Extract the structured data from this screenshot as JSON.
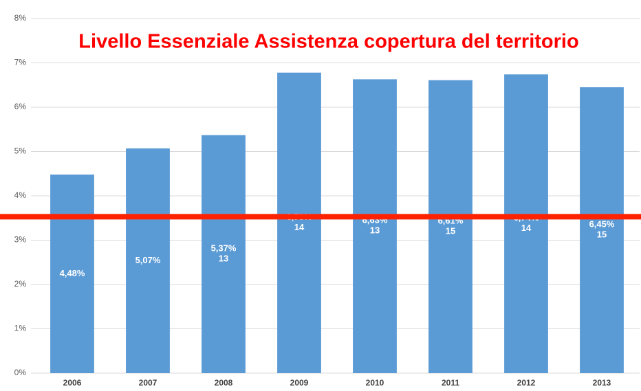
{
  "chart_data": {
    "type": "bar",
    "title": "Livello Essenziale Assistenza copertura del territorio",
    "categories": [
      "2006",
      "2007",
      "2008",
      "2009",
      "2010",
      "2011",
      "2012",
      "2013"
    ],
    "values": [
      4.48,
      5.07,
      5.37,
      6.78,
      6.63,
      6.61,
      6.74,
      6.45
    ],
    "value_labels": [
      "4,48%",
      "5,07%",
      "5,37%",
      "6,78%",
      "6,63%",
      "6,61%",
      "6,74%",
      "6,45%"
    ],
    "counts": [
      null,
      null,
      13,
      14,
      13,
      15,
      14,
      15
    ],
    "color": "#5b9bd5",
    "ylim": [
      0,
      8
    ],
    "yticks": [
      {
        "value": 0,
        "label": "0%"
      },
      {
        "value": 1,
        "label": "1%"
      },
      {
        "value": 2,
        "label": "2%"
      },
      {
        "value": 3,
        "label": "3%"
      },
      {
        "value": 4,
        "label": "4%"
      },
      {
        "value": 5,
        "label": "5%"
      },
      {
        "value": 6,
        "label": "6%"
      },
      {
        "value": 7,
        "label": "7%"
      },
      {
        "value": 8,
        "label": "8%"
      }
    ],
    "grid": true,
    "reference_line": {
      "value": 3.53,
      "color": "#ff2200"
    }
  }
}
